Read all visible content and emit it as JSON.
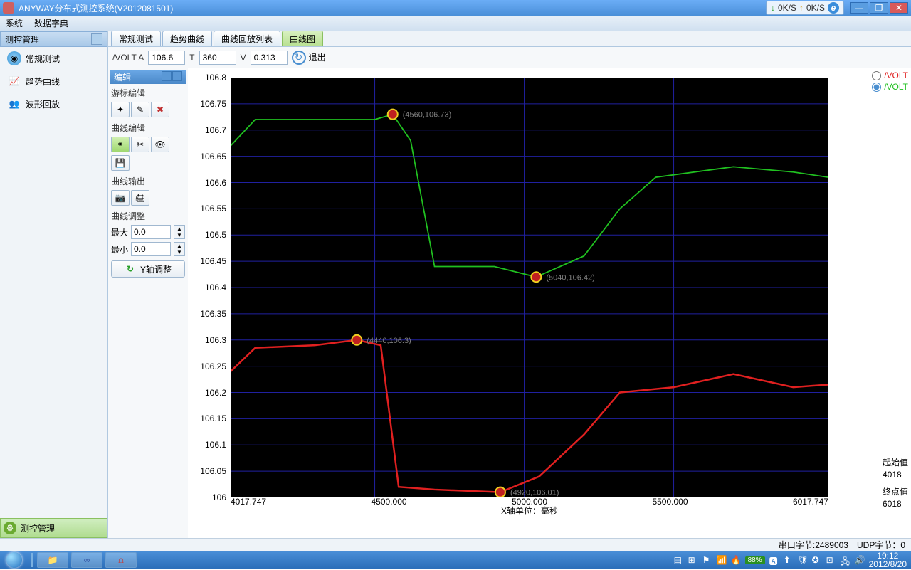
{
  "window": {
    "title": "ANYWAY分布式测控系统(V2012081501)",
    "speed_down": "0K/S",
    "speed_up": "0K/S"
  },
  "menu": {
    "system": "系统",
    "dict": "数据字典"
  },
  "sidebar": {
    "title": "测控管理",
    "items": [
      {
        "label": "常规测试",
        "color": "#3090d0"
      },
      {
        "label": "趋势曲线",
        "color": "#e06030"
      },
      {
        "label": "波形回放",
        "color": "#c09020"
      }
    ],
    "footer": "测控管理"
  },
  "tabs": [
    {
      "label": "常规测试",
      "active": false
    },
    {
      "label": "趋势曲线",
      "active": false
    },
    {
      "label": "曲线回放列表",
      "active": false
    },
    {
      "label": "曲线图",
      "active": true
    }
  ],
  "toolbar": {
    "volt_label": "/VOLT A",
    "volt_value": "106.6",
    "t_label": "T",
    "t_value": "360",
    "v_label": "V",
    "v_value": "0.313",
    "exit": "退出"
  },
  "edit_panel": {
    "title": "编辑",
    "s1": "游标编辑",
    "s2": "曲线编辑",
    "s3": "曲线输出",
    "s4": "曲线调整",
    "max_label": "最大",
    "max_value": "0.0",
    "min_label": "最小",
    "min_value": "0.0",
    "y_adjust": "Y轴调整"
  },
  "chart": {
    "type": "line",
    "background_color": "#000000",
    "grid_color": "#2020a0",
    "xlim": [
      4017.747,
      6017.747
    ],
    "ylim": [
      106,
      106.8
    ],
    "y_ticks": [
      "106.8",
      "106.75",
      "106.7",
      "106.65",
      "106.6",
      "106.55",
      "106.5",
      "106.45",
      "106.4",
      "106.35",
      "106.3",
      "106.25",
      "106.2",
      "106.15",
      "106.1",
      "106.05",
      "106"
    ],
    "x_ticks": [
      "4017.747",
      "4500.000",
      "5000.000",
      "5500.000",
      "6017.747"
    ],
    "x_axis_label": "X轴单位：毫秒",
    "series": [
      {
        "name": "/VOLT",
        "color": "#20c020",
        "width": 1.8,
        "points": [
          [
            4017.747,
            106.67
          ],
          [
            4100,
            106.72
          ],
          [
            4300,
            106.72
          ],
          [
            4500,
            106.72
          ],
          [
            4560,
            106.73
          ],
          [
            4620,
            106.68
          ],
          [
            4700,
            106.44
          ],
          [
            4900,
            106.44
          ],
          [
            5040,
            106.42
          ],
          [
            5200,
            106.46
          ],
          [
            5320,
            106.55
          ],
          [
            5440,
            106.61
          ],
          [
            5700,
            106.63
          ],
          [
            5900,
            106.62
          ],
          [
            6017.747,
            106.61
          ]
        ]
      },
      {
        "name": "/VOLT",
        "color": "#e02020",
        "width": 2.5,
        "points": [
          [
            4017.747,
            106.24
          ],
          [
            4100,
            106.285
          ],
          [
            4300,
            106.29
          ],
          [
            4440,
            106.3
          ],
          [
            4520,
            106.29
          ],
          [
            4580,
            106.02
          ],
          [
            4700,
            106.015
          ],
          [
            4920,
            106.01
          ],
          [
            5050,
            106.04
          ],
          [
            5200,
            106.12
          ],
          [
            5320,
            106.2
          ],
          [
            5500,
            106.21
          ],
          [
            5700,
            106.235
          ],
          [
            5900,
            106.21
          ],
          [
            6017.747,
            106.215
          ]
        ]
      }
    ],
    "markers": [
      {
        "x": 4560,
        "y": 106.73,
        "label": "(4560,106.73)"
      },
      {
        "x": 5040,
        "y": 106.42,
        "label": "(5040,106.42)"
      },
      {
        "x": 4440,
        "y": 106.3,
        "label": "(4440,106.3)"
      },
      {
        "x": 4920,
        "y": 106.01,
        "label": "(4920,106.01)"
      }
    ],
    "legend": [
      {
        "label": "/VOLT",
        "color": "#e02020",
        "checked": false
      },
      {
        "label": "/VOLT",
        "color": "#20c020",
        "checked": true
      }
    ],
    "right_info": {
      "start_label": "起始值",
      "start_value": "4018",
      "end_label": "终点值",
      "end_value": "6018"
    }
  },
  "statusbar": {
    "serial": "串口字节:2489003",
    "udp": "UDP字节：0"
  },
  "taskbar": {
    "battery": "88%",
    "time": "19:12",
    "date": "2012/8/20"
  }
}
